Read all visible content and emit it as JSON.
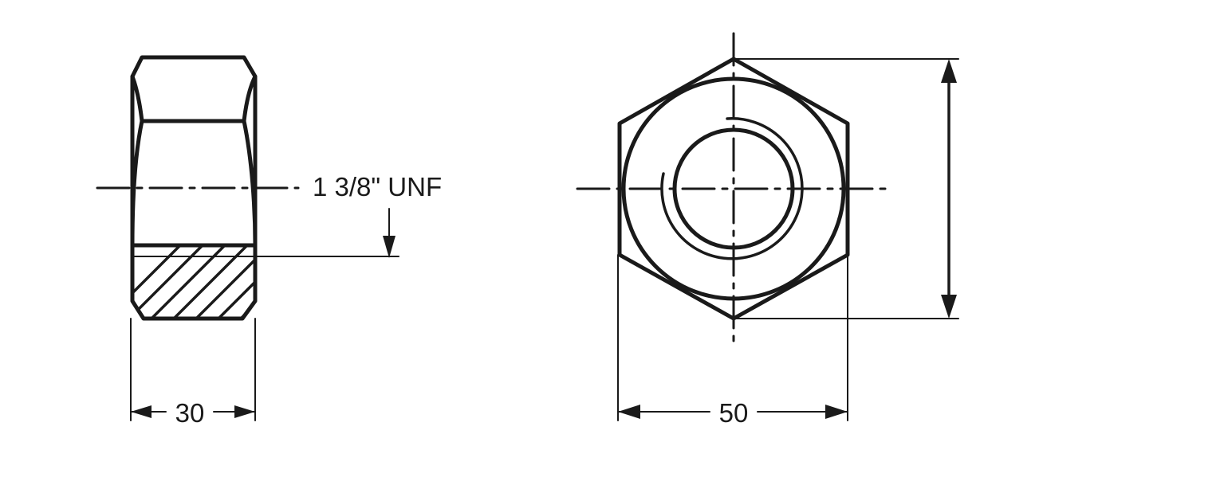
{
  "drawing": {
    "thread_label": "1 3/8\" UNF",
    "side_view_width": "30",
    "front_view_width": "50"
  },
  "colors": {
    "line": "#1a1a1a",
    "background": "#ffffff"
  }
}
